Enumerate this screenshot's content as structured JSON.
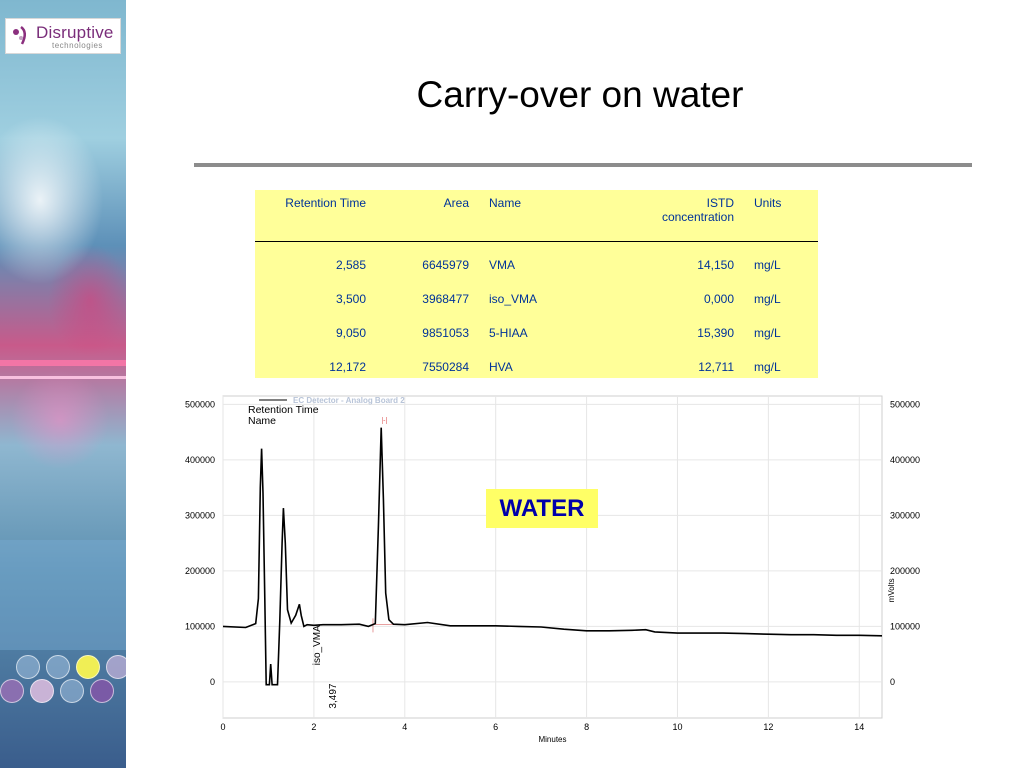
{
  "logo": {
    "name": "Disruptive",
    "sub": "technologies"
  },
  "slide": {
    "title": "Carry-over on water"
  },
  "table": {
    "headers": [
      "Retention Time",
      "Area",
      "Name",
      "ISTD\nconcentration",
      "Units"
    ],
    "rows": [
      [
        "2,585",
        "6645979",
        "VMA",
        "14,150",
        "mg/L"
      ],
      [
        "3,500",
        "3968477",
        "iso_VMA",
        "0,000",
        "mg/L"
      ],
      [
        "9,050",
        "9851053",
        "5-HIAA",
        "15,390",
        "mg/L"
      ],
      [
        "12,172",
        "7550284",
        "HVA",
        "12,711",
        "mg/L"
      ]
    ]
  },
  "badge": {
    "label": "WATER"
  },
  "colors": {
    "table_bg": "#ffff99",
    "table_text": "#003399",
    "badge_bg": "#ffff66",
    "badge_text": "#0000aa",
    "trace": "#000000"
  },
  "chart_data": {
    "type": "line",
    "legend_title": "EC Detector - Analog Board 2",
    "legend_lines": [
      "Retention Time",
      "Name"
    ],
    "xlabel": "Minutes",
    "ylabel_right": "mVolts",
    "xlim": [
      0,
      14.5
    ],
    "ylim": [
      -65000,
      515000
    ],
    "x_ticks": [
      0,
      2,
      4,
      6,
      8,
      10,
      12,
      14
    ],
    "y_ticks": [
      0,
      100000,
      200000,
      300000,
      400000,
      500000
    ],
    "x_tick_labels": [
      "0",
      "2",
      "4",
      "6",
      "8",
      "10",
      "12",
      "14"
    ],
    "y_tick_labels": [
      "0",
      "100000",
      "200000",
      "300000",
      "400000",
      "500000"
    ],
    "peak_annotation": {
      "name": "iso_VMA",
      "retention_time": "3,497",
      "x": 3.497
    },
    "series": [
      {
        "x": [
          0,
          0.5,
          0.72,
          0.78,
          0.82,
          0.85,
          0.88,
          0.92,
          0.95,
          0.98,
          1.02,
          1.05,
          1.08,
          1.12,
          1.15,
          1.2,
          1.25,
          1.3,
          1.33,
          1.37,
          1.42,
          1.5,
          1.6,
          1.68,
          1.72,
          1.78,
          1.85,
          2.0,
          2.2,
          2.6,
          3.0,
          3.2,
          3.35,
          3.42,
          3.48,
          3.53,
          3.58,
          3.65,
          3.75,
          4.0,
          4.5,
          5.0,
          5.5,
          6.0,
          6.5,
          7.0,
          7.5,
          8.0,
          8.5,
          9.0,
          9.3,
          9.5,
          10.0,
          10.5,
          11.0,
          11.5,
          12.0,
          12.5,
          13.0,
          13.5,
          14.0,
          14.5
        ],
        "y": [
          100000,
          98000,
          105000,
          150000,
          350000,
          420000,
          340000,
          150000,
          -5000,
          -5000,
          -5000,
          32000,
          -5000,
          -5000,
          -5000,
          -5000,
          110000,
          250000,
          313000,
          250000,
          130000,
          106000,
          120000,
          140000,
          120000,
          100000,
          103000,
          102000,
          103000,
          103000,
          104000,
          100000,
          105000,
          280000,
          458000,
          330000,
          160000,
          112000,
          104000,
          103000,
          107000,
          101000,
          101000,
          101000,
          100000,
          99000,
          95000,
          92000,
          92000,
          93000,
          94000,
          90000,
          88000,
          88000,
          88000,
          87000,
          86000,
          85000,
          85000,
          84000,
          84000,
          83000
        ]
      }
    ]
  }
}
